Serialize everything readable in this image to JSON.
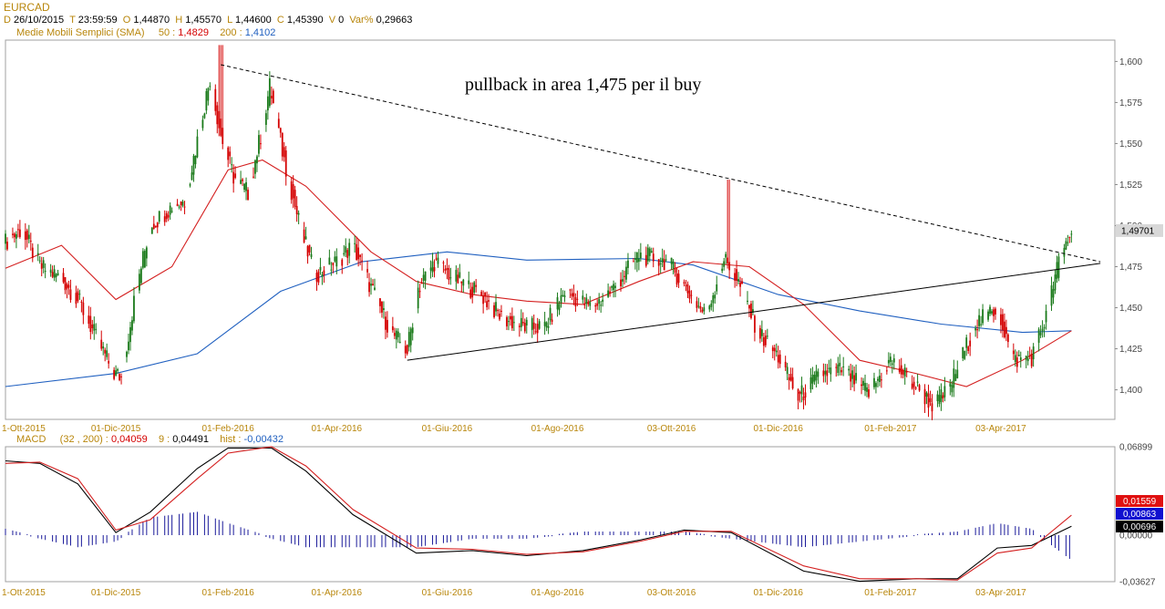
{
  "header": {
    "symbol": "EURCAD",
    "date_label": "D",
    "date": "26/10/2015",
    "time_label": "T",
    "time": "23:59:59",
    "open_label": "O",
    "open": "1,44870",
    "high_label": "H",
    "high": "1,45570",
    "low_label": "L",
    "low": "1,44600",
    "close_label": "C",
    "close": "1,45390",
    "volume_label": "V",
    "volume": "0",
    "var_label": "Var%",
    "var": "0,29663"
  },
  "sma_legend": {
    "title": "Medie Mobili Semplici (SMA)",
    "p1_label": "50 :",
    "p1_value": "1,4829",
    "p2_label": "200 :",
    "p2_value": "1,4102"
  },
  "macd_legend": {
    "title": "MACD",
    "params": "(32 , 200) :",
    "macd_value": "0,04059",
    "signal_label": "9 :",
    "signal_value": "0,04491",
    "hist_label": "hist :",
    "hist_value": "-0,00432"
  },
  "colors": {
    "candle_up": "#1a7a1a",
    "candle_down": "#d40000",
    "sma50": "#d42020",
    "sma200": "#2060c0",
    "macd": "#000000",
    "signal": "#d42020",
    "histogram": "#1a1a9a",
    "axis_text": "#b8860b"
  },
  "chart_data": [
    {
      "type": "candlestick",
      "annotation": "pullback in area 1,475 per il buy",
      "y_ticks": [
        "1,600",
        "1,575",
        "1,550",
        "1,525",
        "1,500",
        "1,475",
        "1,450",
        "1,425",
        "1,400"
      ],
      "y_tick_values": [
        1.6,
        1.575,
        1.55,
        1.525,
        1.5,
        1.475,
        1.45,
        1.425,
        1.4
      ],
      "ylim": [
        1.382,
        1.613
      ],
      "x_ticks": [
        "1-Ott-2015",
        "01-Dic-2015",
        "01-Feb-2016",
        "01-Apr-2016",
        "01-Giu-2016",
        "01-Ago-2016",
        "03-Ott-2016",
        "01-Dic-2016",
        "01-Feb-2017",
        "03-Apr-2017"
      ],
      "last_price": "1,49701",
      "last_price_value": 1.497,
      "price_path": [
        [
          "2015-10-01",
          1.49
        ],
        [
          "2015-10-10",
          1.498
        ],
        [
          "2015-10-20",
          1.475
        ],
        [
          "2015-11-01",
          1.468
        ],
        [
          "2015-11-10",
          1.455
        ],
        [
          "2015-11-20",
          1.432
        ],
        [
          "2015-11-30",
          1.41
        ],
        [
          "2015-12-04",
          1.408
        ],
        [
          "2015-12-12",
          1.46
        ],
        [
          "2015-12-20",
          1.5
        ],
        [
          "2016-01-01",
          1.512
        ],
        [
          "2016-01-08",
          1.515
        ],
        [
          "2016-01-15",
          1.552
        ],
        [
          "2016-01-22",
          1.59
        ],
        [
          "2016-01-28",
          1.555
        ],
        [
          "2016-02-04",
          1.53
        ],
        [
          "2016-02-12",
          1.52
        ],
        [
          "2016-02-20",
          1.56
        ],
        [
          "2016-02-24",
          1.585
        ],
        [
          "2016-03-03",
          1.54
        ],
        [
          "2016-03-12",
          1.498
        ],
        [
          "2016-03-20",
          1.47
        ],
        [
          "2016-04-01",
          1.478
        ],
        [
          "2016-04-10",
          1.488
        ],
        [
          "2016-04-20",
          1.462
        ],
        [
          "2016-05-01",
          1.435
        ],
        [
          "2016-05-10",
          1.424
        ],
        [
          "2016-05-16",
          1.462
        ],
        [
          "2016-05-25",
          1.478
        ],
        [
          "2016-06-05",
          1.468
        ],
        [
          "2016-06-20",
          1.458
        ],
        [
          "2016-07-01",
          1.444
        ],
        [
          "2016-07-15",
          1.438
        ],
        [
          "2016-07-25",
          1.438
        ],
        [
          "2016-08-05",
          1.46
        ],
        [
          "2016-08-20",
          1.45
        ],
        [
          "2016-09-01",
          1.462
        ],
        [
          "2016-09-15",
          1.482
        ],
        [
          "2016-10-01",
          1.478
        ],
        [
          "2016-10-12",
          1.46
        ],
        [
          "2016-10-22",
          1.445
        ],
        [
          "2016-11-01",
          1.48
        ],
        [
          "2016-11-08",
          1.468
        ],
        [
          "2016-11-20",
          1.435
        ],
        [
          "2016-12-01",
          1.42
        ],
        [
          "2016-12-12",
          1.395
        ],
        [
          "2016-12-25",
          1.41
        ],
        [
          "2017-01-05",
          1.412
        ],
        [
          "2017-01-20",
          1.398
        ],
        [
          "2017-02-01",
          1.418
        ],
        [
          "2017-02-15",
          1.402
        ],
        [
          "2017-02-25",
          1.39
        ],
        [
          "2017-03-05",
          1.4
        ],
        [
          "2017-03-20",
          1.44
        ],
        [
          "2017-04-01",
          1.45
        ],
        [
          "2017-04-10",
          1.418
        ],
        [
          "2017-04-20",
          1.42
        ],
        [
          "2017-04-28",
          1.445
        ],
        [
          "2017-05-05",
          1.478
        ],
        [
          "2017-05-12",
          1.497
        ]
      ],
      "spikes": [
        {
          "date": "2016-01-28",
          "high": 1.61
        },
        {
          "date": "2016-11-04",
          "high": 1.528
        }
      ],
      "sma50": [
        [
          "2015-10-01",
          1.474
        ],
        [
          "2015-11-01",
          1.488
        ],
        [
          "2015-12-01",
          1.455
        ],
        [
          "2016-01-01",
          1.475
        ],
        [
          "2016-02-01",
          1.534
        ],
        [
          "2016-02-20",
          1.54
        ],
        [
          "2016-03-15",
          1.524
        ],
        [
          "2016-04-20",
          1.484
        ],
        [
          "2016-05-15",
          1.466
        ],
        [
          "2016-06-15",
          1.458
        ],
        [
          "2016-07-15",
          1.454
        ],
        [
          "2016-08-15",
          1.452
        ],
        [
          "2016-09-15",
          1.466
        ],
        [
          "2016-10-15",
          1.478
        ],
        [
          "2016-11-15",
          1.475
        ],
        [
          "2016-12-15",
          1.452
        ],
        [
          "2017-01-15",
          1.418
        ],
        [
          "2017-02-15",
          1.41
        ],
        [
          "2017-03-15",
          1.402
        ],
        [
          "2017-04-15",
          1.418
        ],
        [
          "2017-05-12",
          1.436
        ]
      ],
      "sma200": [
        [
          "2015-10-01",
          1.402
        ],
        [
          "2015-12-01",
          1.41
        ],
        [
          "2016-01-15",
          1.422
        ],
        [
          "2016-03-01",
          1.46
        ],
        [
          "2016-04-15",
          1.478
        ],
        [
          "2016-06-01",
          1.484
        ],
        [
          "2016-07-15",
          1.479
        ],
        [
          "2016-09-15",
          1.48
        ],
        [
          "2016-10-15",
          1.476
        ],
        [
          "2016-12-01",
          1.458
        ],
        [
          "2017-01-15",
          1.448
        ],
        [
          "2017-03-01",
          1.44
        ],
        [
          "2017-04-15",
          1.435
        ],
        [
          "2017-05-12",
          1.436
        ]
      ],
      "trendlines": [
        {
          "style": "dashed",
          "from": [
            "2016-01-28",
            1.598
          ],
          "to": [
            "2017-05-28",
            1.478
          ]
        },
        {
          "style": "solid",
          "from": [
            "2016-05-10",
            1.418
          ],
          "to": [
            "2017-05-28",
            1.477
          ]
        }
      ]
    },
    {
      "type": "line",
      "title": "MACD",
      "y_ticks": [
        "0,06899",
        "0,00000",
        "-0,03627"
      ],
      "y_tick_values": [
        0.06899,
        0.0,
        -0.03627
      ],
      "ylim": [
        -0.03627,
        0.06899
      ],
      "last_values": [
        {
          "label": "0,01559",
          "value": 0.01559,
          "color": "#e01010"
        },
        {
          "label": "0,00863",
          "value": 0.00863,
          "color": "#1010d0"
        },
        {
          "label": "0,00696",
          "value": 0.00696,
          "color": "#000000"
        }
      ],
      "macd": [
        [
          "2015-10-01",
          0.058
        ],
        [
          "2015-10-20",
          0.056
        ],
        [
          "2015-11-10",
          0.04
        ],
        [
          "2015-12-01",
          0.002
        ],
        [
          "2015-12-20",
          0.018
        ],
        [
          "2016-01-15",
          0.052
        ],
        [
          "2016-02-01",
          0.068
        ],
        [
          "2016-02-25",
          0.068
        ],
        [
          "2016-03-15",
          0.05
        ],
        [
          "2016-04-10",
          0.016
        ],
        [
          "2016-05-15",
          -0.014
        ],
        [
          "2016-06-15",
          -0.012
        ],
        [
          "2016-07-15",
          -0.016
        ],
        [
          "2016-08-15",
          -0.012
        ],
        [
          "2016-09-15",
          -0.004
        ],
        [
          "2016-10-10",
          0.004
        ],
        [
          "2016-11-05",
          0.002
        ],
        [
          "2016-12-15",
          -0.028
        ],
        [
          "2017-01-15",
          -0.036
        ],
        [
          "2017-02-15",
          -0.034
        ],
        [
          "2017-03-10",
          -0.034
        ],
        [
          "2017-04-01",
          -0.01
        ],
        [
          "2017-04-20",
          -0.008
        ],
        [
          "2017-05-12",
          0.007
        ]
      ],
      "signal": [
        [
          "2015-10-01",
          0.056
        ],
        [
          "2015-10-20",
          0.057
        ],
        [
          "2015-11-10",
          0.044
        ],
        [
          "2015-12-01",
          0.004
        ],
        [
          "2015-12-20",
          0.012
        ],
        [
          "2016-01-15",
          0.044
        ],
        [
          "2016-02-01",
          0.064
        ],
        [
          "2016-02-25",
          0.069
        ],
        [
          "2016-03-15",
          0.054
        ],
        [
          "2016-04-10",
          0.02
        ],
        [
          "2016-05-15",
          -0.01
        ],
        [
          "2016-06-15",
          -0.011
        ],
        [
          "2016-07-15",
          -0.015
        ],
        [
          "2016-08-15",
          -0.013
        ],
        [
          "2016-09-15",
          -0.005
        ],
        [
          "2016-10-10",
          0.003
        ],
        [
          "2016-11-05",
          0.003
        ],
        [
          "2016-12-15",
          -0.024
        ],
        [
          "2017-01-15",
          -0.034
        ],
        [
          "2017-02-15",
          -0.034
        ],
        [
          "2017-03-10",
          -0.035
        ],
        [
          "2017-04-01",
          -0.014
        ],
        [
          "2017-04-20",
          -0.01
        ],
        [
          "2017-05-12",
          0.0156
        ]
      ]
    }
  ]
}
